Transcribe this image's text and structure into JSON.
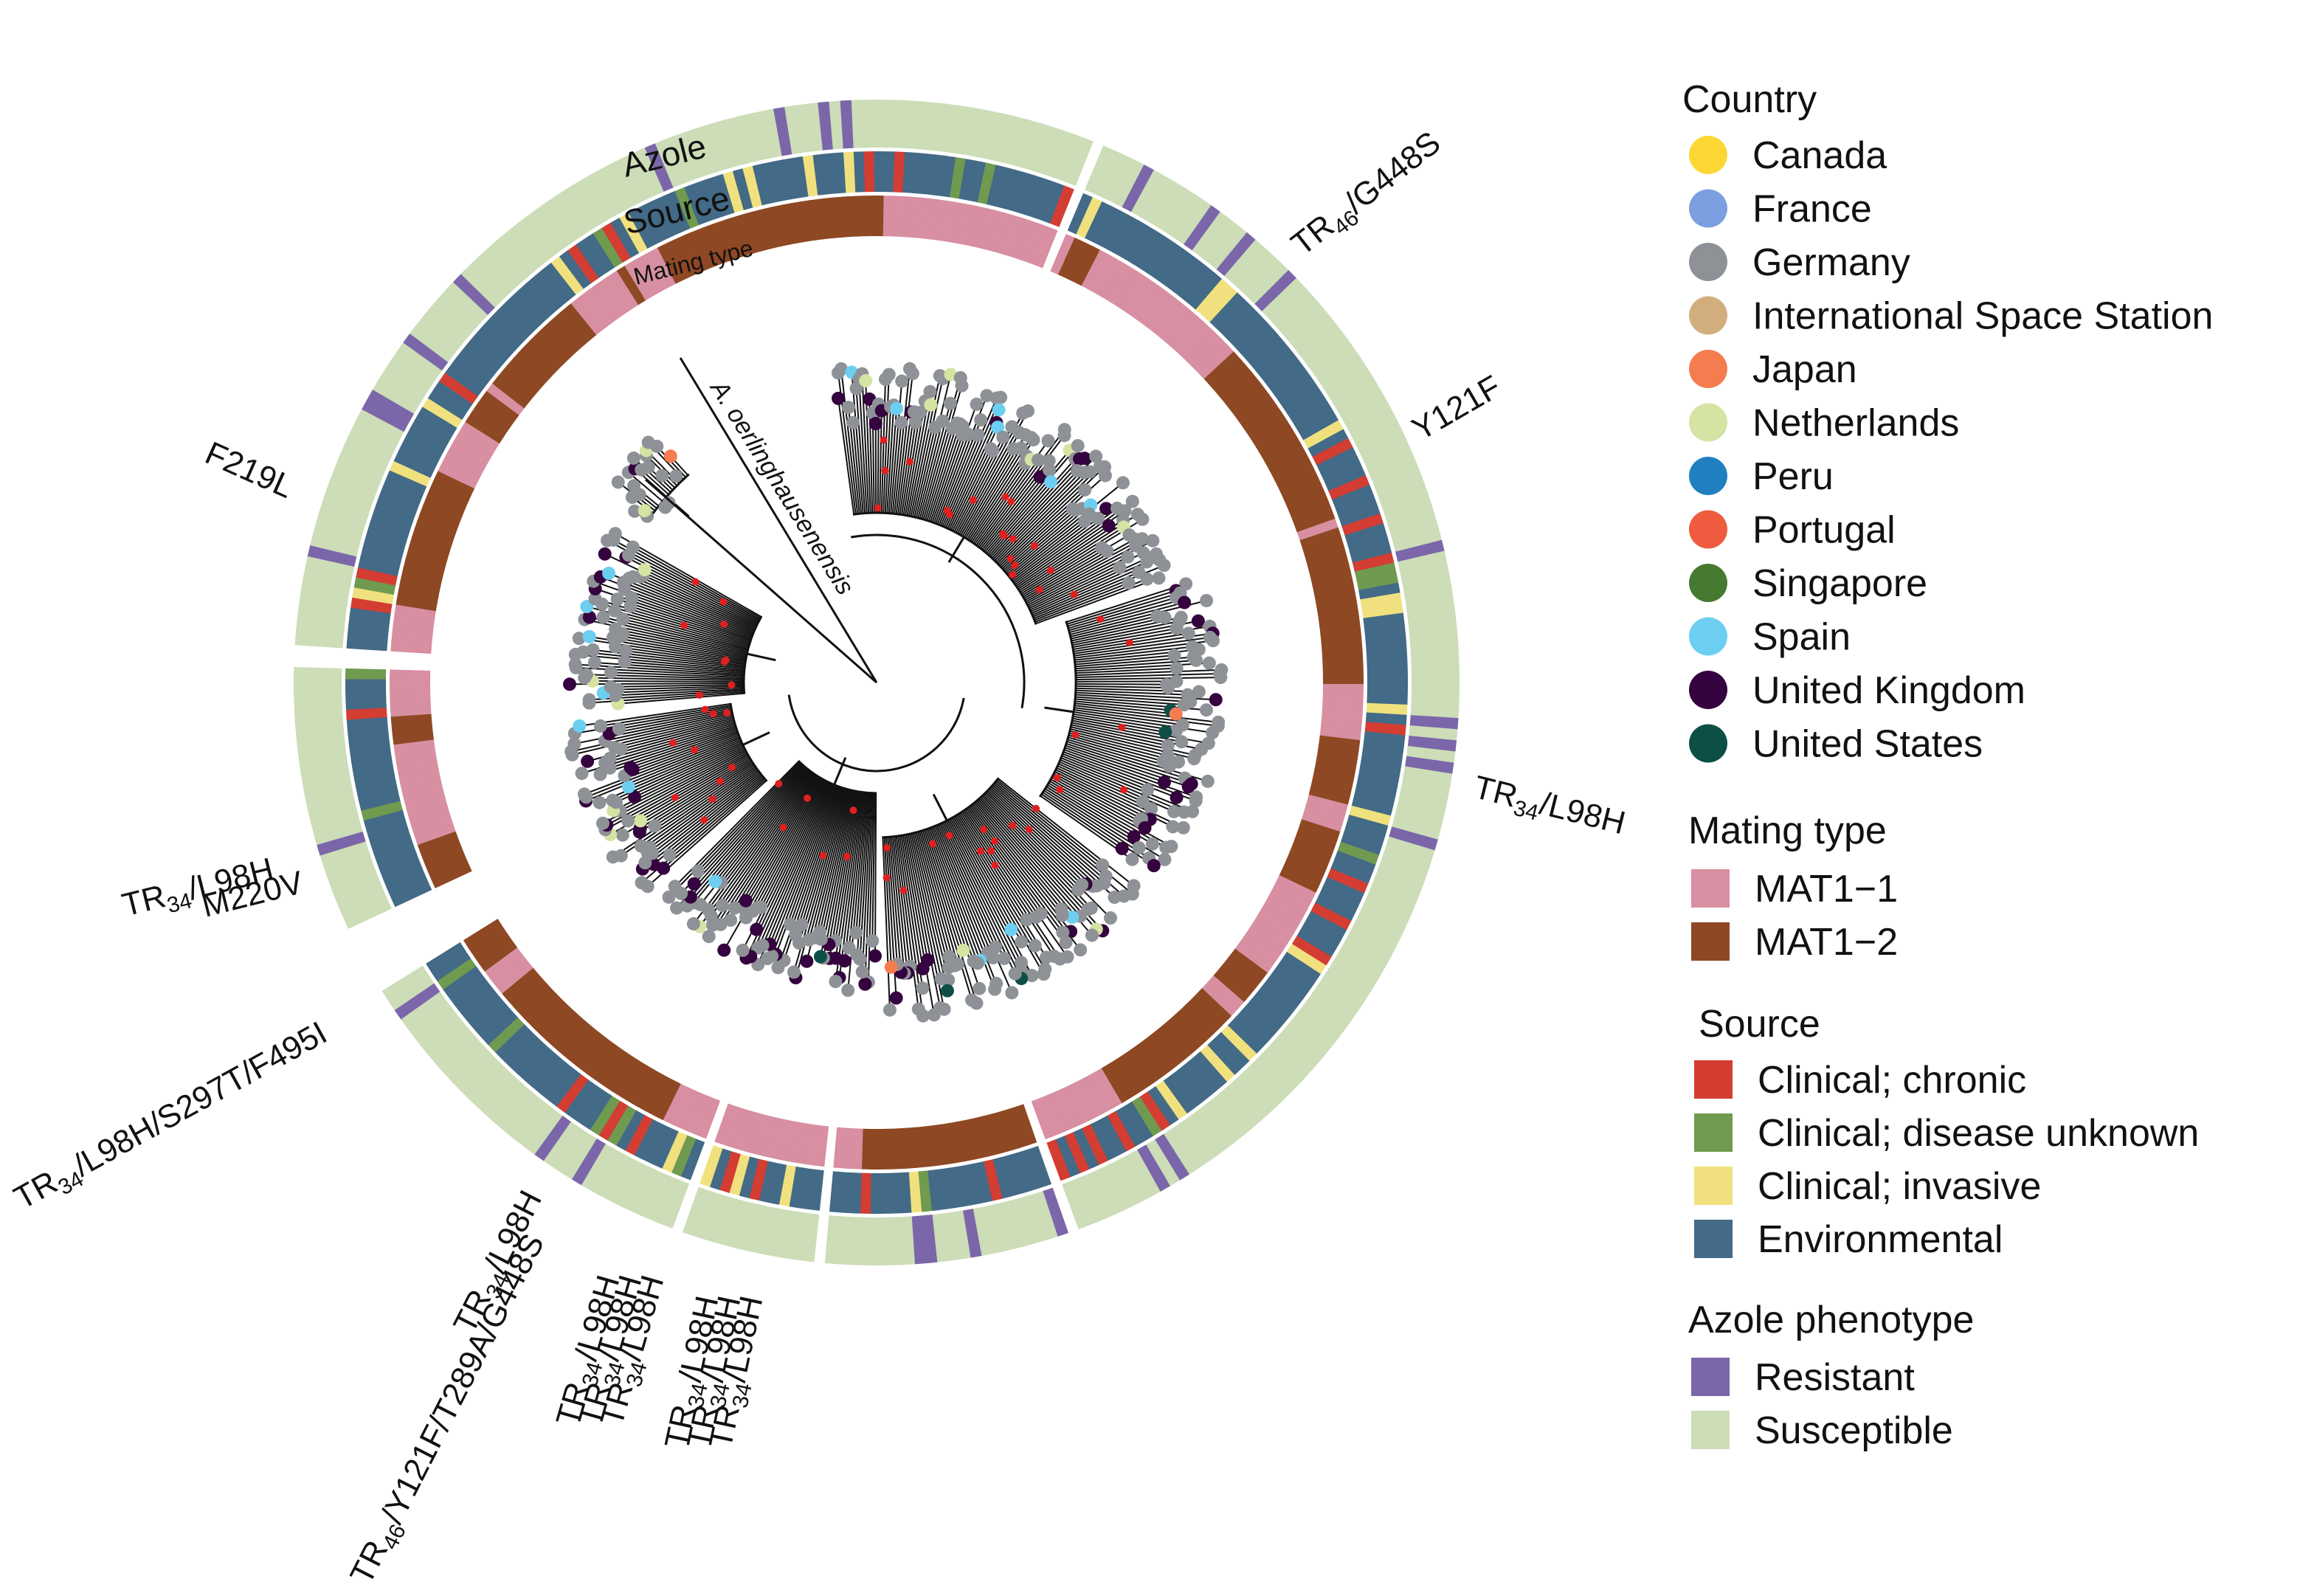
{
  "ring_labels": {
    "azole": "Azole",
    "source": "Source",
    "mating": "Mating type"
  },
  "outgroup_label": "A. oerlinghausenensis",
  "mutation_labels": [
    {
      "id": "m1",
      "main": "TR",
      "sub": "46",
      "rest": "/G448S"
    },
    {
      "id": "m2",
      "main": "Y121F",
      "sub": "",
      "rest": ""
    },
    {
      "id": "m3",
      "main": "TR",
      "sub": "34",
      "rest": "/L98H"
    },
    {
      "id": "m4",
      "main": "F219L",
      "sub": "",
      "rest": ""
    },
    {
      "id": "m5",
      "main": "TR",
      "sub": "34",
      "rest": "/L98H"
    },
    {
      "id": "m6",
      "main": "M220V",
      "sub": "",
      "rest": ""
    },
    {
      "id": "m7",
      "main": "TR",
      "sub": "34",
      "rest": "/L98H/S297T/F495I"
    },
    {
      "id": "m8",
      "main": "TR",
      "sub": "34",
      "rest": "/L98H"
    },
    {
      "id": "m9",
      "main": "TR",
      "sub": "46",
      "rest": "/Y121F/T289A/G448S"
    },
    {
      "id": "m10",
      "main": "TR",
      "sub": "34",
      "rest": "/L98H"
    },
    {
      "id": "m11",
      "main": "TR",
      "sub": "34",
      "rest": "/L98H"
    },
    {
      "id": "m12",
      "main": "TR",
      "sub": "34",
      "rest": "/L98H"
    },
    {
      "id": "m13",
      "main": "TR",
      "sub": "34",
      "rest": "/L98H"
    },
    {
      "id": "m14",
      "main": "TR",
      "sub": "34",
      "rest": "/L98H"
    },
    {
      "id": "m15",
      "main": "TR",
      "sub": "34",
      "rest": "/L98H"
    }
  ],
  "legend": {
    "country": {
      "title": "Country",
      "items": [
        {
          "label": "Canada",
          "color": "#FDD835"
        },
        {
          "label": "France",
          "color": "#7B9FE0"
        },
        {
          "label": "Germany",
          "color": "#8E9297"
        },
        {
          "label": "International Space Station",
          "color": "#D2AE7E"
        },
        {
          "label": "Japan",
          "color": "#F57C4E"
        },
        {
          "label": "Netherlands",
          "color": "#D5E3A3"
        },
        {
          "label": "Peru",
          "color": "#1F7FC1"
        },
        {
          "label": "Portugal",
          "color": "#EF5B3E"
        },
        {
          "label": "Singapore",
          "color": "#467A30"
        },
        {
          "label": "Spain",
          "color": "#6CCFF2"
        },
        {
          "label": "United Kingdom",
          "color": "#35033F"
        },
        {
          "label": "United States",
          "color": "#0D4F47"
        }
      ]
    },
    "mating": {
      "title": "Mating type",
      "items": [
        {
          "label": "MAT1−1",
          "color": "#D78FA1"
        },
        {
          "label": "MAT1−2",
          "color": "#8E4823"
        }
      ]
    },
    "source": {
      "title": "Source",
      "items": [
        {
          "label": "Clinical; chronic",
          "color": "#D33D32"
        },
        {
          "label": "Clinical; disease unknown",
          "color": "#6F9A50"
        },
        {
          "label": "Clinical; invasive",
          "color": "#F0E17E"
        },
        {
          "label": "Environmental",
          "color": "#436A87"
        }
      ]
    },
    "azole": {
      "title": "Azole phenotype",
      "items": [
        {
          "label": "Resistant",
          "color": "#7B66AA"
        },
        {
          "label": "Susceptible",
          "color": "#CCDDB7"
        }
      ]
    }
  }
}
